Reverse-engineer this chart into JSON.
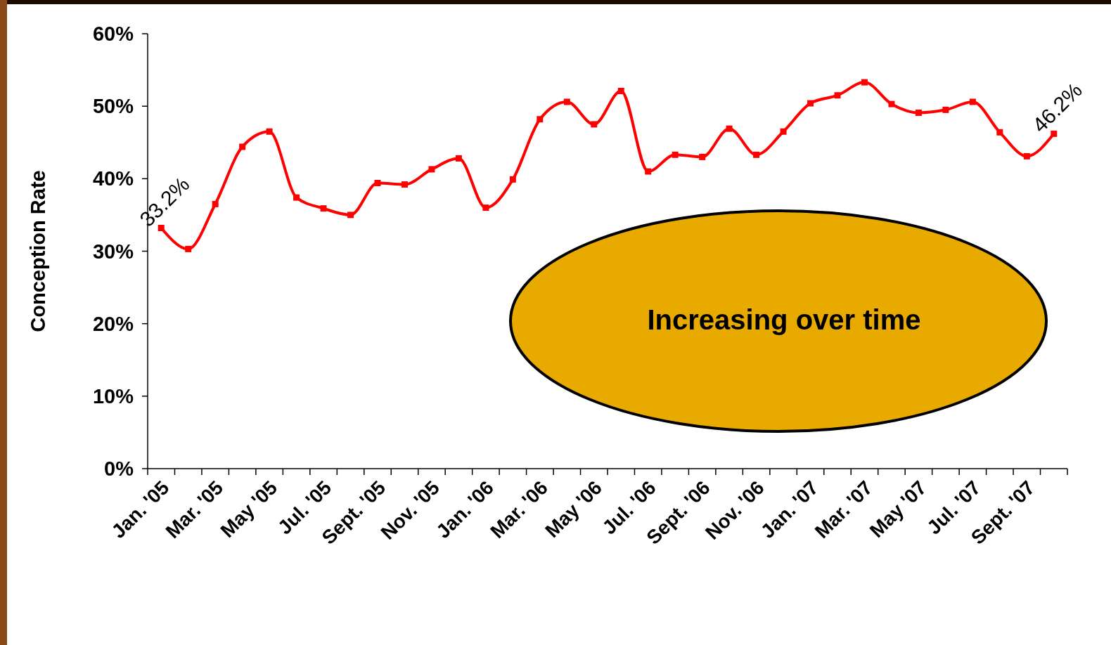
{
  "chart_data": {
    "type": "line",
    "ylabel": "Conception Rate",
    "categories": [
      "Jan. '05",
      null,
      "Mar. '05",
      null,
      "May '05",
      null,
      "Jul. '05",
      null,
      "Sept. '05",
      null,
      "Nov. '05",
      null,
      "Jan. '06",
      null,
      "Mar. '06",
      null,
      "May '06",
      null,
      "Jul. '06",
      null,
      "Sept. '06",
      null,
      "Nov. '06",
      null,
      "Jan. '07",
      null,
      "Mar. '07",
      null,
      "May '07",
      null,
      "Jul. '07",
      null,
      "Sept. '07",
      null
    ],
    "series": [
      {
        "color": "#ff0000",
        "values": [
          33.2,
          30.3,
          36.5,
          44.4,
          46.5,
          37.4,
          35.9,
          35.0,
          39.4,
          39.2,
          41.3,
          42.8,
          36.0,
          39.9,
          48.2,
          50.6,
          47.5,
          52.1,
          41.0,
          43.3,
          43.0,
          46.9,
          43.3,
          46.5,
          50.4,
          51.5,
          53.3,
          50.3,
          49.1,
          49.5,
          50.6,
          46.4,
          43.1,
          46.2
        ],
        "value_labels": [
          "33.2%",
          null,
          null,
          null,
          null,
          null,
          null,
          null,
          null,
          null,
          null,
          null,
          null,
          null,
          null,
          null,
          null,
          null,
          null,
          null,
          null,
          null,
          null,
          null,
          null,
          null,
          null,
          null,
          null,
          null,
          null,
          null,
          null,
          "46.2%"
        ]
      }
    ],
    "ylim": [
      0,
      60
    ],
    "yticks": [
      {
        "value": 0,
        "label": "0%"
      },
      {
        "value": 10,
        "label": "10%"
      },
      {
        "value": 20,
        "label": "20%"
      },
      {
        "value": 30,
        "label": "30%"
      },
      {
        "value": 40,
        "label": "40%"
      },
      {
        "value": 50,
        "label": "50%"
      },
      {
        "value": 60,
        "label": "60%"
      }
    ],
    "grid": false,
    "marker": "square",
    "line_style": "solid",
    "annotations": [
      "Increasing over time"
    ]
  }
}
